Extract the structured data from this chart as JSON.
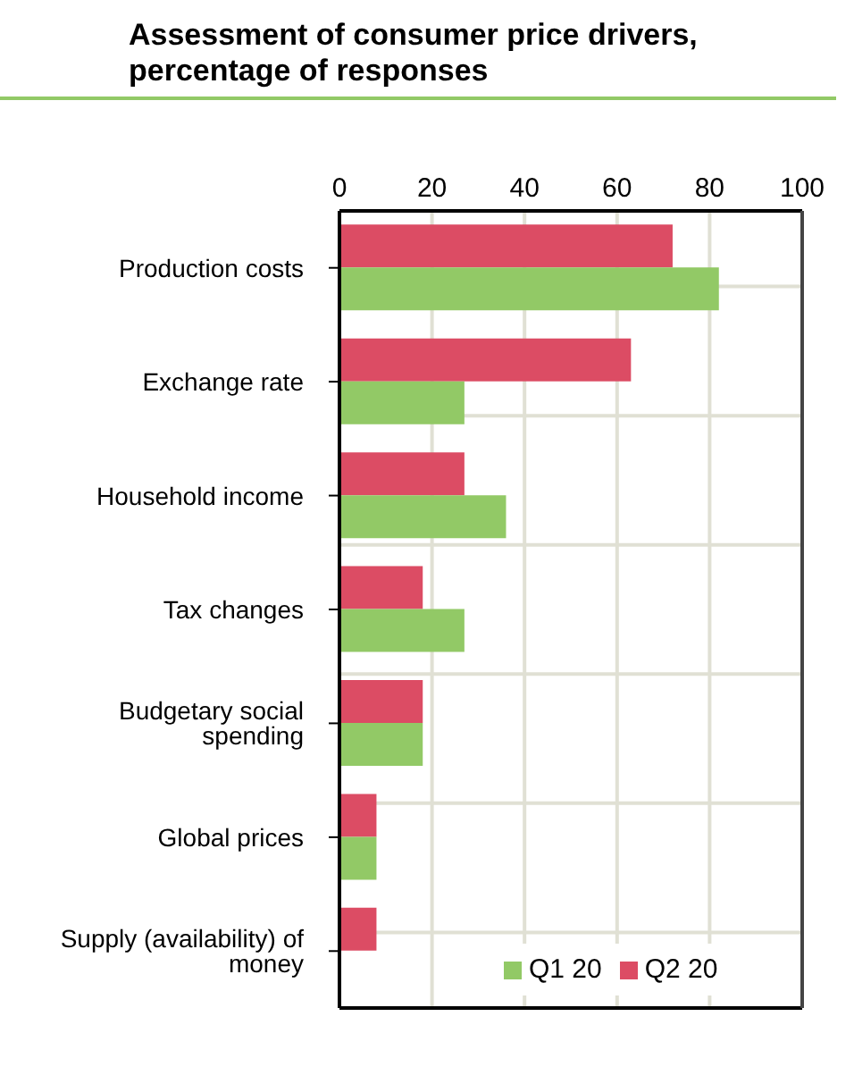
{
  "chart_data": {
    "type": "bar",
    "orientation": "horizontal",
    "title": "Assessment of consumer price drivers, percentage of responses",
    "categories": [
      "Production costs",
      "Exchange rate",
      "Household income",
      "Tax changes",
      "Budgetary social spending",
      "Global prices",
      "Supply (availability) of money"
    ],
    "series": [
      {
        "name": "Q2 20",
        "color": "#dc4c64",
        "values": [
          72,
          63,
          27,
          18,
          18,
          8,
          8
        ]
      },
      {
        "name": "Q1 20",
        "color": "#92c966",
        "values": [
          82,
          27,
          36,
          27,
          18,
          8,
          0
        ]
      }
    ],
    "xlim": [
      0,
      100
    ],
    "xticks": [
      0,
      20,
      40,
      60,
      80,
      100
    ],
    "grid": true,
    "legend": "bottom right"
  }
}
